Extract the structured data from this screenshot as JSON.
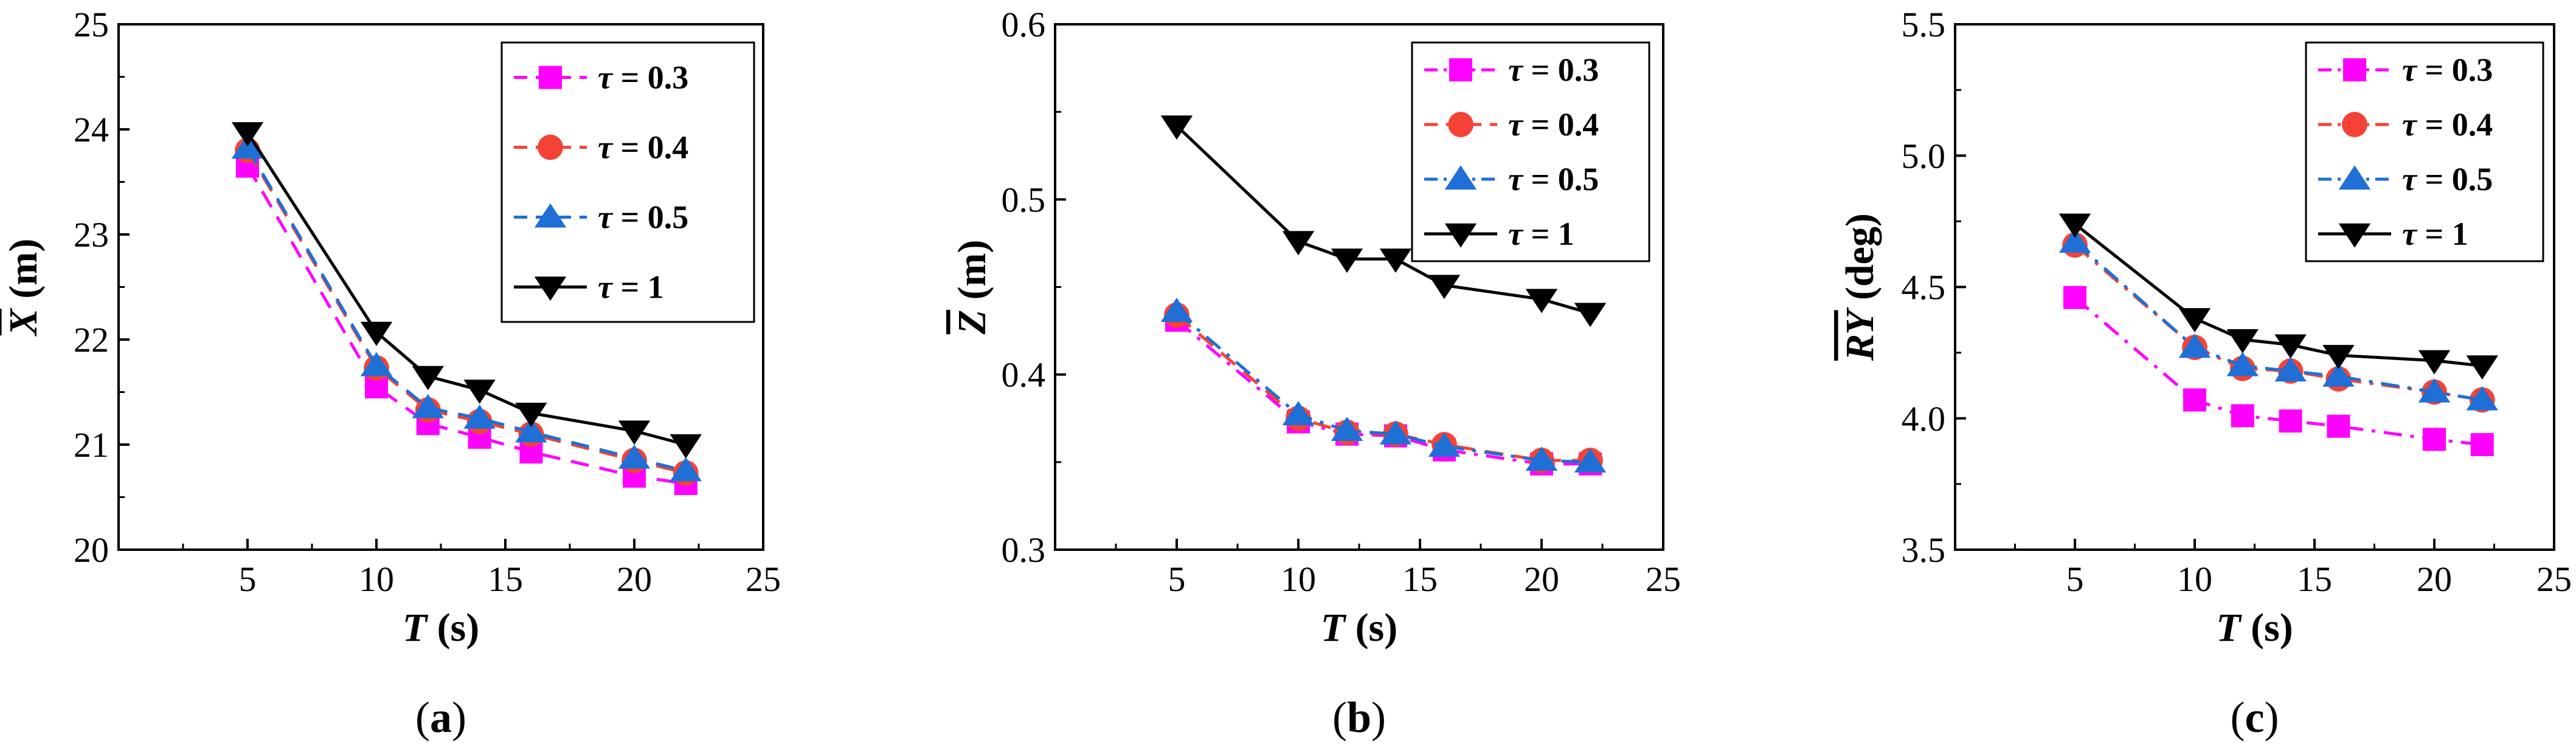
{
  "chart_data": [
    {
      "type": "line",
      "caption": "(a)",
      "xlabel": "T (s)",
      "ylabel": "X (m)",
      "xlim": [
        0,
        25
      ],
      "ylim": [
        20,
        25
      ],
      "xticks": [
        5,
        10,
        15,
        20,
        25
      ],
      "yticks": [
        20,
        21,
        22,
        23,
        24,
        25
      ],
      "x": [
        5,
        10,
        12,
        14,
        16,
        20,
        22
      ],
      "legend_position": "top-right",
      "series": [
        {
          "name": "τ = 0.3",
          "color": "#ff00ff",
          "marker": "square",
          "dash": "dash",
          "values": [
            23.65,
            21.55,
            21.2,
            21.07,
            20.93,
            20.7,
            20.63
          ]
        },
        {
          "name": "τ = 0.4",
          "color": "#f44336",
          "marker": "circle",
          "dash": "dash",
          "values": [
            23.8,
            21.73,
            21.33,
            21.22,
            21.1,
            20.85,
            20.73
          ]
        },
        {
          "name": "τ = 0.5",
          "color": "#1f6fd6",
          "marker": "triangle",
          "dash": "dash",
          "values": [
            23.82,
            21.75,
            21.35,
            21.25,
            21.12,
            20.87,
            20.75
          ]
        },
        {
          "name": "τ = 1",
          "color": "#000000",
          "marker": "triangle-down",
          "dash": "solid",
          "values": [
            23.97,
            22.07,
            21.65,
            21.52,
            21.3,
            21.13,
            21.0
          ]
        }
      ]
    },
    {
      "type": "line",
      "caption": "(b)",
      "xlabel": "T (s)",
      "ylabel": "Z (m)",
      "xlim": [
        0,
        25
      ],
      "ylim": [
        0.3,
        0.6
      ],
      "xticks": [
        5,
        10,
        15,
        20,
        25
      ],
      "yticks": [
        0.3,
        0.4,
        0.5,
        0.6
      ],
      "x": [
        5,
        10,
        12,
        14,
        16,
        20,
        22
      ],
      "legend_position": "top-right",
      "series": [
        {
          "name": "τ = 0.3",
          "color": "#ff00ff",
          "marker": "square",
          "dash": "dashdot",
          "values": [
            0.431,
            0.373,
            0.366,
            0.365,
            0.357,
            0.349,
            0.349
          ]
        },
        {
          "name": "τ = 0.4",
          "color": "#f44336",
          "marker": "circle",
          "dash": "dash",
          "values": [
            0.434,
            0.375,
            0.367,
            0.366,
            0.36,
            0.351,
            0.351
          ]
        },
        {
          "name": "τ = 0.5",
          "color": "#1f6fd6",
          "marker": "triangle",
          "dash": "dashdot",
          "values": [
            0.436,
            0.377,
            0.368,
            0.366,
            0.359,
            0.351,
            0.35
          ]
        },
        {
          "name": "τ = 1",
          "color": "#000000",
          "marker": "triangle-down",
          "dash": "solid",
          "values": [
            0.542,
            0.476,
            0.466,
            0.466,
            0.451,
            0.443,
            0.435
          ]
        }
      ]
    },
    {
      "type": "line",
      "caption": "(c)",
      "xlabel": "T (s)",
      "ylabel": "RY (deg)",
      "xlim": [
        0,
        25
      ],
      "ylim": [
        3.5,
        5.5
      ],
      "xticks": [
        5,
        10,
        15,
        20,
        25
      ],
      "yticks": [
        3.5,
        4.0,
        4.5,
        5.0,
        5.5
      ],
      "ytick_labels": [
        "3.5",
        "4.0",
        "4.5",
        "5.0",
        "5.5"
      ],
      "x": [
        5,
        10,
        12,
        14,
        16,
        20,
        22
      ],
      "legend_position": "top-right",
      "series": [
        {
          "name": "τ = 0.3",
          "color": "#ff00ff",
          "marker": "square",
          "dash": "dashdot",
          "values": [
            4.46,
            4.07,
            4.01,
            3.99,
            3.97,
            3.92,
            3.9
          ]
        },
        {
          "name": "τ = 0.4",
          "color": "#f44336",
          "marker": "circle",
          "dash": "dashdot",
          "values": [
            4.66,
            4.27,
            4.19,
            4.18,
            4.15,
            4.1,
            4.07
          ]
        },
        {
          "name": "τ = 0.5",
          "color": "#1f6fd6",
          "marker": "triangle",
          "dash": "dashdot",
          "values": [
            4.67,
            4.27,
            4.2,
            4.18,
            4.16,
            4.1,
            4.07
          ]
        },
        {
          "name": "τ = 1",
          "color": "#000000",
          "marker": "triangle-down",
          "dash": "solid",
          "values": [
            4.74,
            4.38,
            4.3,
            4.28,
            4.24,
            4.22,
            4.2
          ]
        }
      ]
    }
  ]
}
